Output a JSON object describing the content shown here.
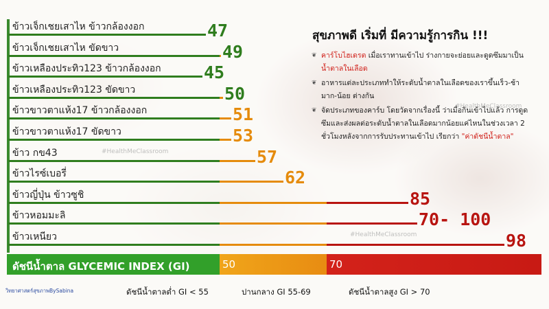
{
  "chart_data": {
    "type": "bar",
    "title": "สุขภาพดี  เริ่มที่  มีความรู้การกิน  !!!",
    "categories": [
      "ข้าวเจ็กเชยเสาไห  ข้าวกล้องงอก",
      "ข้าวเจ็กเชยเสาไห  ขัดขาว",
      "ข้าวเหลืองประทิว123  ข้าวกล้องงอก",
      "ข้าวเหลืองประทิว123  ขัดขาว",
      "ข้าวขาวตาแห้ง17  ข้าวกล้องงอก",
      "ข้าวขาวตาแห้ง17  ขัดขาว",
      "ข้าว  กข43",
      "ข้าวไรซ์เบอรี่",
      "ข้าวญี่ปุ่น  ข้าวซูชิ",
      "ข้าวหอมมะลิ",
      "ข้าวเหนียว"
    ],
    "values": [
      47,
      49,
      45,
      50,
      51,
      53,
      57,
      62,
      85,
      85,
      98
    ],
    "value_labels": [
      "47",
      "49",
      "45",
      "50",
      "51",
      "53",
      "57",
      "62",
      "85",
      "70- 100",
      "98"
    ],
    "xlabel": "ดัชนีน้ำตาล  GLYCEMIC  INDEX  (GI)",
    "scale_ticks": [
      "50",
      "70"
    ],
    "legend": [
      "ดัชนีน้ำตาลต่ำ  GI  <  55",
      "ปานกลาง  GI  55-69",
      "ดัชนีน้ำตาลสูง  GI  >  70"
    ],
    "colors": {
      "low": "#2f7d1e",
      "mid": "#e58b0c",
      "high": "#b81410",
      "scale_low": "#32a02a",
      "scale_mid": "#f0a51a",
      "scale_high": "#d3221a"
    }
  },
  "info": {
    "bullets": [
      [
        {
          "t": "คาร์โบไฮเดรต",
          "red": true
        },
        {
          "t": "  เมื่อเราทานเข้าไป  ร่างกายจะย่อยและดูดซึมมาเป็น  "
        },
        {
          "t": "น้ำตาลในเลือด",
          "red": true
        }
      ],
      [
        {
          "t": "อาหารแต่ละประเภททำให้ระดับน้ำตาลในเลือดของเราขึ้นเร็ว-ช้า  มาก-น้อย  ต่างกัน"
        }
      ],
      [
        {
          "t": "จัดประเภทของคาร์บ  โดยวัดจากเรื่องนี้  ว่าเมื่อกินเข้าไปแล้ว  การดูดซึมและส่งผลต่อระดับน้ำตาลในเลือดมากน้อยแค่ไหนในช่วงเวลา  2  ชั่วโมงหลังจากการรับประทานเข้าไป  เรียกว่า  "
        },
        {
          "t": "\"ค่าดัชนีน้ำตาล\"",
          "red": true
        }
      ]
    ]
  },
  "watermark": "#HealthMeClassroom",
  "credit": "วิทยาศาสตร์สุขภาพBySabina"
}
